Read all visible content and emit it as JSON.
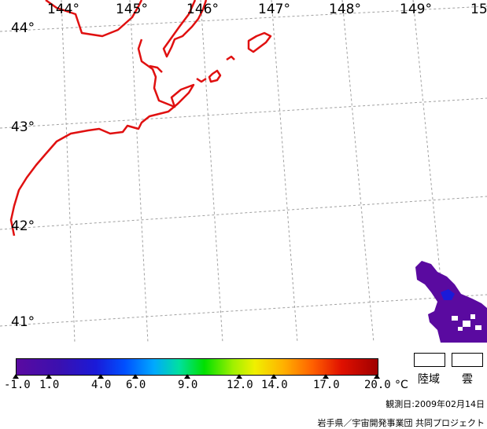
{
  "map": {
    "longitude_labels": [
      "144°",
      "145°",
      "146°",
      "147°",
      "148°",
      "149°",
      "15"
    ],
    "latitude_labels": [
      "44°",
      "43°",
      "42°",
      "41°"
    ],
    "coastline_color": "#e01010",
    "gridline_color": "#a0a0a0"
  },
  "colorbar": {
    "ticks": [
      "-1.0",
      "1.0",
      "4.0",
      "6.0",
      "9.0",
      "12.0",
      "14.0",
      "17.0",
      "20.0"
    ],
    "unit": "°C"
  },
  "legend": {
    "land_label": "陸域",
    "cloud_label": "雲"
  },
  "observation_date": "観測日:2009年02月14日",
  "credit": "岩手県／宇宙開発事業団 共同プロジェクト"
}
